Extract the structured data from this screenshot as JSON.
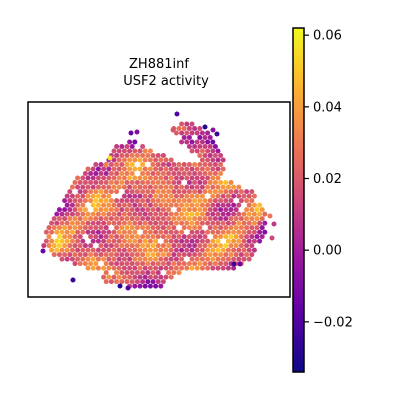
{
  "chart_data": {
    "type": "scatter",
    "title_lines": [
      "ZH881inf",
      "USF2 activity"
    ],
    "xlabel": "",
    "ylabel": "",
    "grid": false,
    "colormap": "plasma",
    "colormap_stops": [
      "#0d0887",
      "#5c01a6",
      "#9c179e",
      "#cc4778",
      "#ed7953",
      "#fdb42f",
      "#f0f921"
    ],
    "colorbar": {
      "vmin": -0.034,
      "vmax": 0.062,
      "ticks": [
        {
          "value": 0.06,
          "label": "0.06"
        },
        {
          "value": 0.04,
          "label": "0.04"
        },
        {
          "value": 0.02,
          "label": "0.02"
        },
        {
          "value": 0.0,
          "label": "0.00"
        },
        {
          "value": -0.02,
          "label": "−0.02"
        }
      ]
    },
    "spots_description_values": "spatial spot activity values in colormap units, range approx -0.034 to 0.062"
  }
}
